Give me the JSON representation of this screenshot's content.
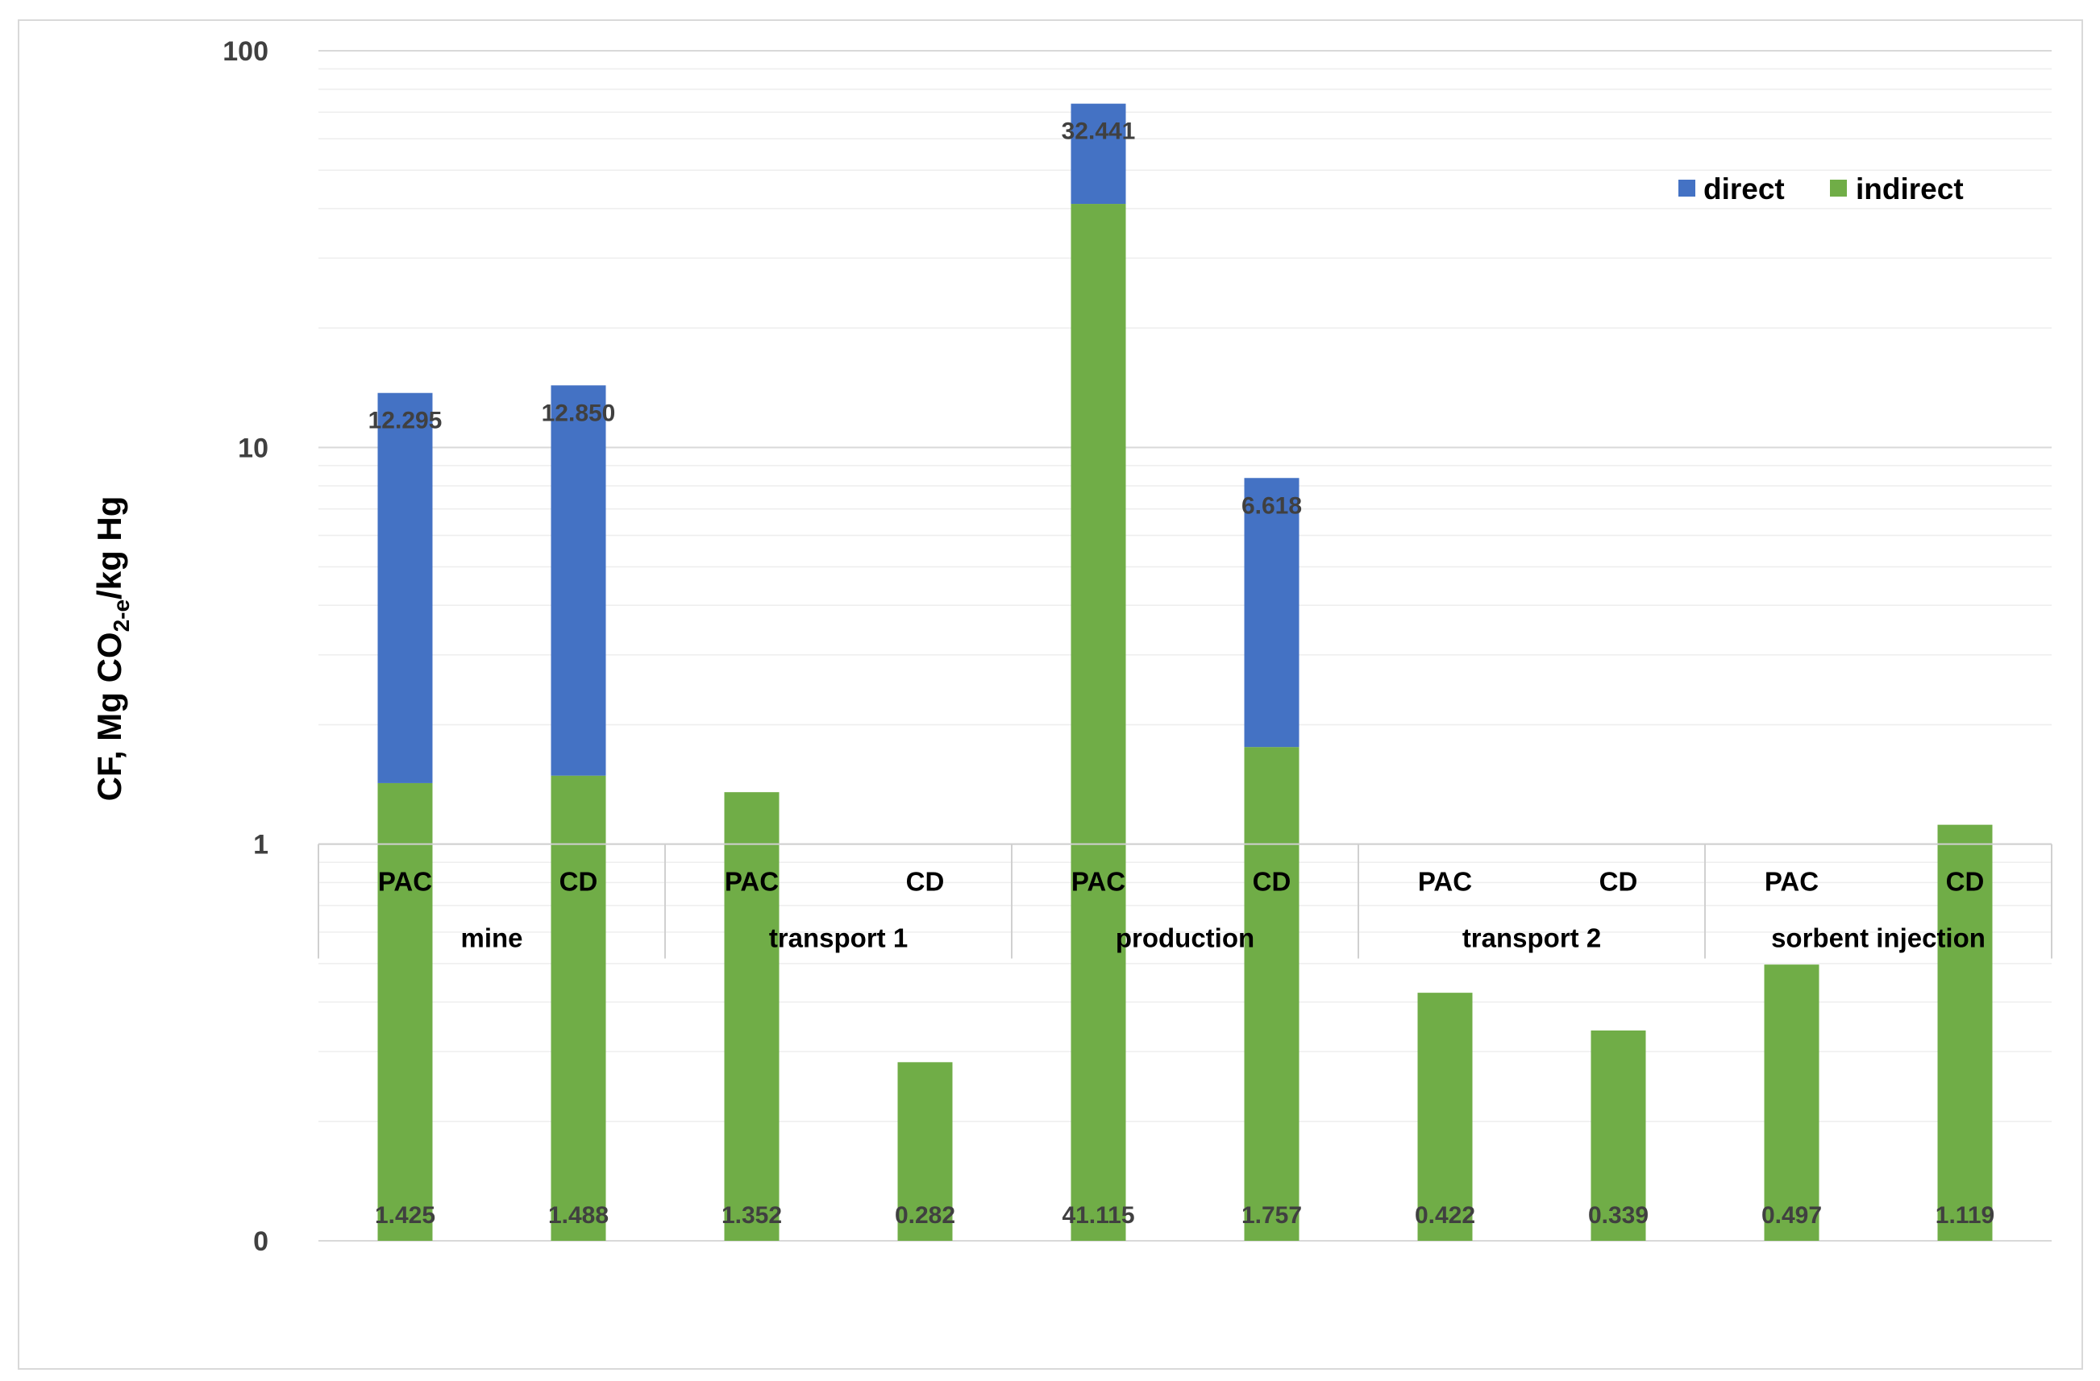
{
  "chart_data": {
    "type": "bar",
    "stacked": true,
    "scale": "log",
    "ylabel": {
      "main": "CF, Mg CO",
      "sub": "2-e",
      "tail": "/kg Hg"
    },
    "ylim": [
      0.1,
      100
    ],
    "yticks": [
      {
        "value": 0.1,
        "label": "0"
      },
      {
        "value": 1,
        "label": "1"
      },
      {
        "value": 10,
        "label": "10"
      },
      {
        "value": 100,
        "label": "100"
      }
    ],
    "groups": [
      "mine",
      "transport 1",
      "production",
      "transport 2",
      "sorbent injection"
    ],
    "categories": [
      "PAC",
      "CD",
      "PAC",
      "CD",
      "PAC",
      "CD",
      "PAC",
      "CD",
      "PAC",
      "CD"
    ],
    "series": [
      {
        "name": "indirect",
        "color": "#70ad47",
        "values": [
          1.425,
          1.488,
          1.352,
          0.282,
          41.115,
          1.757,
          0.422,
          0.339,
          0.497,
          1.119
        ],
        "labels": [
          "1.425",
          "1.488",
          "1.352",
          "0.282",
          "41.115",
          "1.757",
          "0.422",
          "0.339",
          "0.497",
          "1.119"
        ]
      },
      {
        "name": "direct",
        "color": "#4472c4",
        "values": [
          12.295,
          12.85,
          0,
          0,
          32.441,
          6.618,
          0,
          0,
          0,
          0
        ],
        "labels": [
          "12.295",
          "12.850",
          "",
          "",
          "32.441",
          "6.618",
          "",
          "",
          "",
          ""
        ]
      }
    ],
    "legend": {
      "position": "top-right",
      "items": [
        "direct",
        "indirect"
      ]
    },
    "grid": true
  }
}
